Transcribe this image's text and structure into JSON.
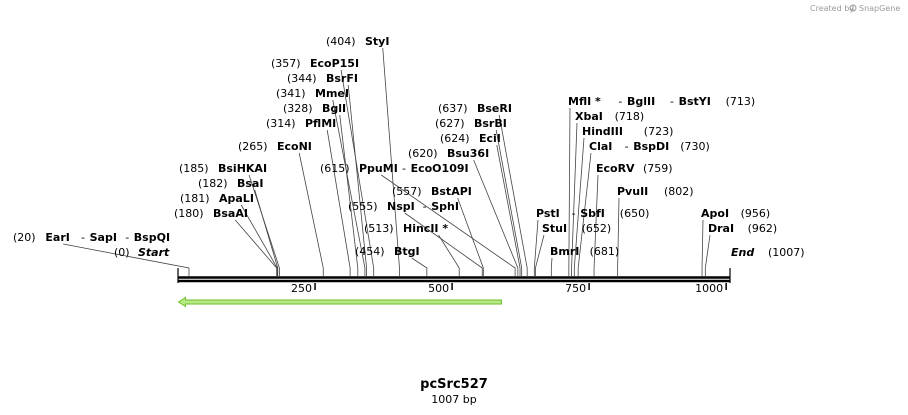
{
  "credit": {
    "prefix": "Created by",
    "brand": "SnapGene"
  },
  "colors": {
    "backbone": "#000000",
    "feature_fill": "#b8e986",
    "feature_stroke": "#6cbf2a"
  },
  "sequence": {
    "name": "pcSrc527",
    "length_label": "1007 bp",
    "length": 1007
  },
  "ends": {
    "start": {
      "pos": "(0)",
      "label": "Start"
    },
    "end": {
      "label": "End",
      "pos": "(1007)"
    }
  },
  "ticks": [
    "250",
    "500",
    "750",
    "1000"
  ],
  "tick_values": [
    250,
    500,
    750,
    1000
  ],
  "feature": {
    "name": "feature-arrow",
    "direction": "reverse",
    "start": 1,
    "end": 590
  },
  "sites": [
    {
      "pos": "(20)",
      "names": [
        "EarI",
        "SapI",
        "BspQI"
      ],
      "bp": 20
    },
    {
      "pos": "(180)",
      "names": [
        "BsaAI"
      ],
      "bp": 180
    },
    {
      "pos": "(181)",
      "names": [
        "ApaLI"
      ],
      "bp": 181
    },
    {
      "pos": "(182)",
      "names": [
        "BsaI"
      ],
      "bp": 182
    },
    {
      "pos": "(185)",
      "names": [
        "BsiHKAI"
      ],
      "bp": 185
    },
    {
      "pos": "(265)",
      "names": [
        "EcoNI"
      ],
      "bp": 265
    },
    {
      "pos": "(314)",
      "names": [
        "PflMI"
      ],
      "bp": 314
    },
    {
      "pos": "(328)",
      "names": [
        "BglI"
      ],
      "bp": 328
    },
    {
      "pos": "(341)",
      "names": [
        "MmeI"
      ],
      "bp": 341
    },
    {
      "pos": "(344)",
      "names": [
        "BsrFI"
      ],
      "bp": 344
    },
    {
      "pos": "(357)",
      "names": [
        "EcoP15I"
      ],
      "bp": 357
    },
    {
      "pos": "(404)",
      "names": [
        "StyI"
      ],
      "bp": 404
    },
    {
      "pos": "(454)",
      "names": [
        "BtgI"
      ],
      "bp": 454
    },
    {
      "pos": "(513)",
      "names": [
        "HincII *"
      ],
      "bp": 513
    },
    {
      "pos": "(555)",
      "names": [
        "NspI",
        "SphI"
      ],
      "bp": 555
    },
    {
      "pos": "(557)",
      "names": [
        "BstAPI"
      ],
      "bp": 557
    },
    {
      "pos": "(615)",
      "names": [
        "PpuMI",
        "EcoO109I"
      ],
      "bp": 615
    },
    {
      "pos": "(620)",
      "names": [
        "Bsu36I"
      ],
      "bp": 620
    },
    {
      "pos": "(624)",
      "names": [
        "EciI"
      ],
      "bp": 624
    },
    {
      "pos": "(627)",
      "names": [
        "BsrBI"
      ],
      "bp": 627
    },
    {
      "pos": "(637)",
      "names": [
        "BseRI"
      ],
      "bp": 637
    },
    {
      "pos": "(650)",
      "names": [
        "PstI",
        "SbfI"
      ],
      "bp": 650
    },
    {
      "pos": "(652)",
      "names": [
        "StuI"
      ],
      "bp": 652
    },
    {
      "pos": "(681)",
      "names": [
        "BmrI"
      ],
      "bp": 681
    },
    {
      "pos": "(713)",
      "names": [
        "MflI *",
        "BglII",
        "BstYI"
      ],
      "bp": 713
    },
    {
      "pos": "(718)",
      "names": [
        "XbaI"
      ],
      "bp": 718
    },
    {
      "pos": "(723)",
      "names": [
        "HindIII"
      ],
      "bp": 723
    },
    {
      "pos": "(730)",
      "names": [
        "ClaI",
        "BspDI"
      ],
      "bp": 730
    },
    {
      "pos": "(759)",
      "names": [
        "EcoRV"
      ],
      "bp": 759
    },
    {
      "pos": "(802)",
      "names": [
        "PvuII"
      ],
      "bp": 802
    },
    {
      "pos": "(956)",
      "names": [
        "ApoI"
      ],
      "bp": 956
    },
    {
      "pos": "(962)",
      "names": [
        "DraI"
      ],
      "bp": 962
    }
  ]
}
